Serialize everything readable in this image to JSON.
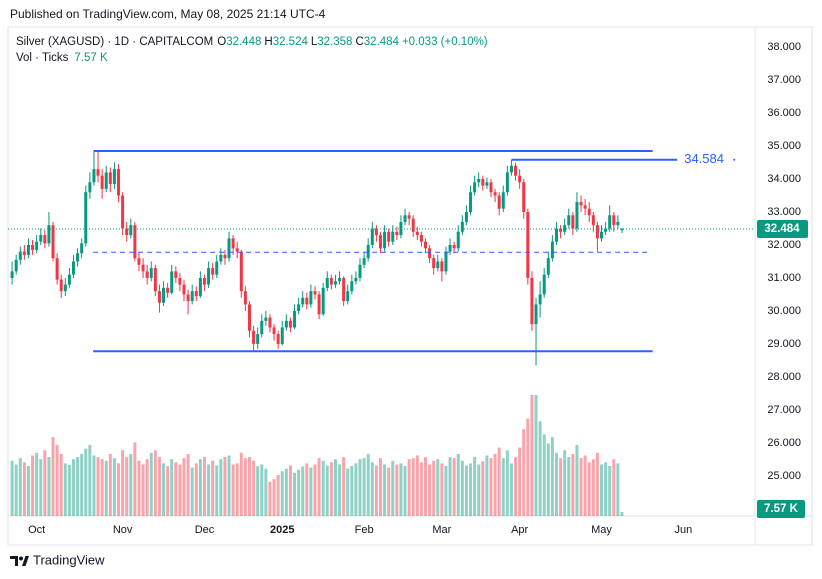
{
  "chart_data": {
    "type": "candlestick",
    "published": "Published on TradingView.com, May 08, 2025 21:14 UTC-4",
    "title": "Silver (XAGUSD) · 1D · CAPITALCOM",
    "ohlc_letters": [
      "O",
      "H",
      "L",
      "C"
    ],
    "change": "+0.033 (+0.10%)",
    "volume_title": "Vol · Ticks",
    "brand": "TradingView",
    "up_color": "#089981",
    "down_color": "#f23645",
    "line_color": "#2962ff",
    "xlim": [
      -1,
      181.5
    ],
    "xticks": [
      {
        "value": 6,
        "label": "Oct"
      },
      {
        "value": 27,
        "label": "Nov"
      },
      {
        "value": 47,
        "label": "Dec"
      },
      {
        "value": 66,
        "label": "2025"
      },
      {
        "value": 86,
        "label": "Feb"
      },
      {
        "value": 105,
        "label": "Mar"
      },
      {
        "value": 124,
        "label": "Apr"
      },
      {
        "value": 144,
        "label": "May"
      },
      {
        "value": 164,
        "label": "Jun"
      }
    ],
    "ylim": [
      23.785,
      38.577
    ],
    "yticks": [
      {
        "value": 25,
        "label": "25.000"
      },
      {
        "value": 26,
        "label": "26.000"
      },
      {
        "value": 27,
        "label": "27.000"
      },
      {
        "value": 28,
        "label": "28.000"
      },
      {
        "value": 29,
        "label": "29.000"
      },
      {
        "value": 30,
        "label": "30.000"
      },
      {
        "value": 31,
        "label": "31.000"
      },
      {
        "value": 32,
        "label": "32.000"
      },
      {
        "value": 33,
        "label": "33.000"
      },
      {
        "value": 34,
        "label": "34.000"
      },
      {
        "value": 35,
        "label": "35.000"
      },
      {
        "value": 36,
        "label": "36.000"
      },
      {
        "value": 37,
        "label": "37.000"
      },
      {
        "value": 38,
        "label": "38.000"
      }
    ],
    "lines": [
      {
        "price": 34.85,
        "from": 20,
        "to": 156.5,
        "style": "solid"
      },
      {
        "price": 34.584,
        "from": 122,
        "to": 162.5,
        "style": "solid"
      },
      {
        "price": 31.78,
        "from": 19.8,
        "to": 155.8,
        "style": "dashed"
      },
      {
        "price": 28.78,
        "from": 19.8,
        "to": 156.5,
        "style": "solid"
      }
    ],
    "series": [
      {
        "values": [
          [
            31.0,
            31.5,
            30.8,
            31.2
          ],
          [
            31.2,
            31.7,
            31.1,
            31.55
          ],
          [
            31.55,
            31.95,
            31.4,
            31.8
          ],
          [
            31.8,
            32.0,
            31.55,
            31.7
          ],
          [
            31.7,
            32.2,
            31.6,
            32.0
          ],
          [
            32.0,
            32.15,
            31.7,
            31.85
          ],
          [
            31.85,
            32.3,
            31.75,
            32.1
          ],
          [
            32.1,
            32.5,
            32.0,
            32.3
          ],
          [
            32.3,
            32.45,
            31.9,
            32.05
          ],
          [
            32.05,
            33.0,
            31.95,
            32.6
          ],
          [
            32.6,
            32.7,
            31.5,
            31.6
          ],
          [
            31.6,
            31.75,
            30.8,
            30.95
          ],
          [
            30.95,
            31.1,
            30.4,
            30.6
          ],
          [
            30.6,
            31.0,
            30.45,
            30.8
          ],
          [
            30.8,
            31.3,
            30.7,
            31.1
          ],
          [
            31.1,
            31.7,
            31.0,
            31.5
          ],
          [
            31.5,
            31.9,
            31.35,
            31.75
          ],
          [
            31.75,
            32.2,
            31.6,
            32.05
          ],
          [
            32.05,
            33.8,
            31.95,
            33.6
          ],
          [
            33.6,
            34.2,
            33.4,
            33.9
          ],
          [
            33.9,
            34.87,
            33.8,
            34.3
          ],
          [
            34.3,
            34.85,
            33.9,
            34.1
          ],
          [
            34.1,
            34.3,
            33.4,
            33.7
          ],
          [
            33.7,
            34.4,
            33.6,
            34.2
          ],
          [
            34.2,
            34.35,
            33.6,
            33.85
          ],
          [
            33.85,
            34.5,
            33.7,
            34.3
          ],
          [
            34.3,
            34.45,
            33.3,
            33.5
          ],
          [
            33.5,
            33.6,
            32.3,
            32.5
          ],
          [
            32.5,
            32.7,
            32.1,
            32.3
          ],
          [
            32.3,
            32.8,
            32.2,
            32.6
          ],
          [
            32.6,
            32.7,
            31.5,
            31.6
          ],
          [
            31.6,
            31.8,
            31.2,
            31.4
          ],
          [
            31.4,
            31.6,
            31.0,
            31.2
          ],
          [
            31.2,
            31.4,
            30.8,
            31.0
          ],
          [
            31.0,
            31.5,
            30.9,
            31.3
          ],
          [
            31.3,
            31.4,
            30.45,
            30.6
          ],
          [
            30.6,
            30.8,
            29.95,
            30.25
          ],
          [
            30.25,
            30.9,
            30.15,
            30.7
          ],
          [
            30.7,
            30.85,
            30.4,
            30.55
          ],
          [
            30.55,
            31.4,
            30.5,
            31.2
          ],
          [
            31.2,
            31.35,
            30.85,
            31.0
          ],
          [
            31.0,
            31.15,
            30.6,
            30.8
          ],
          [
            30.8,
            30.95,
            30.3,
            30.5
          ],
          [
            30.5,
            30.65,
            29.9,
            30.3
          ],
          [
            30.3,
            30.8,
            30.2,
            30.6
          ],
          [
            30.6,
            30.75,
            30.3,
            30.45
          ],
          [
            30.45,
            31.2,
            30.4,
            31.0
          ],
          [
            31.0,
            31.1,
            30.6,
            30.8
          ],
          [
            30.8,
            31.5,
            30.7,
            31.3
          ],
          [
            31.3,
            31.45,
            30.95,
            31.1
          ],
          [
            31.1,
            31.7,
            31.0,
            31.5
          ],
          [
            31.5,
            31.9,
            31.4,
            31.7
          ],
          [
            31.7,
            31.85,
            31.4,
            31.6
          ],
          [
            31.6,
            32.4,
            31.5,
            32.2
          ],
          [
            32.2,
            32.3,
            31.7,
            31.9
          ],
          [
            31.9,
            32.1,
            31.6,
            31.8
          ],
          [
            31.8,
            31.85,
            30.4,
            30.6
          ],
          [
            30.6,
            30.75,
            30.0,
            30.2
          ],
          [
            30.2,
            30.3,
            29.2,
            29.4
          ],
          [
            29.4,
            29.55,
            28.8,
            29.0
          ],
          [
            29.0,
            29.5,
            28.85,
            29.3
          ],
          [
            29.3,
            29.9,
            29.2,
            29.7
          ],
          [
            29.7,
            30.0,
            29.55,
            29.8
          ],
          [
            29.8,
            29.9,
            29.35,
            29.5
          ],
          [
            29.5,
            29.6,
            29.1,
            29.3
          ],
          [
            29.3,
            29.4,
            28.85,
            29.0
          ],
          [
            29.0,
            29.7,
            28.95,
            29.5
          ],
          [
            29.5,
            29.9,
            29.4,
            29.7
          ],
          [
            29.7,
            29.8,
            29.35,
            29.5
          ],
          [
            29.5,
            30.2,
            29.45,
            30.0
          ],
          [
            30.0,
            30.4,
            29.9,
            30.2
          ],
          [
            30.2,
            30.6,
            30.1,
            30.4
          ],
          [
            30.4,
            30.55,
            30.05,
            30.2
          ],
          [
            30.2,
            30.8,
            30.1,
            30.6
          ],
          [
            30.6,
            30.75,
            30.35,
            30.5
          ],
          [
            30.5,
            30.6,
            29.75,
            29.9
          ],
          [
            29.9,
            30.85,
            29.85,
            30.7
          ],
          [
            30.7,
            31.2,
            30.6,
            31.0
          ],
          [
            31.0,
            31.1,
            30.65,
            30.8
          ],
          [
            30.8,
            31.1,
            30.7,
            30.9
          ],
          [
            30.9,
            31.2,
            30.8,
            31.0
          ],
          [
            31.0,
            31.05,
            30.15,
            30.3
          ],
          [
            30.3,
            30.8,
            30.2,
            30.6
          ],
          [
            30.6,
            31.1,
            30.5,
            30.9
          ],
          [
            30.9,
            31.2,
            30.8,
            31.0
          ],
          [
            31.0,
            31.6,
            30.9,
            31.4
          ],
          [
            31.4,
            31.8,
            31.3,
            31.6
          ],
          [
            31.6,
            32.2,
            31.5,
            32.0
          ],
          [
            32.0,
            32.7,
            31.9,
            32.5
          ],
          [
            32.5,
            32.6,
            32.1,
            32.3
          ],
          [
            32.3,
            32.4,
            31.75,
            31.9
          ],
          [
            31.9,
            32.6,
            31.8,
            32.4
          ],
          [
            32.4,
            32.5,
            31.95,
            32.1
          ],
          [
            32.1,
            32.6,
            32.0,
            32.4
          ],
          [
            32.4,
            32.55,
            32.15,
            32.3
          ],
          [
            32.3,
            32.9,
            32.2,
            32.7
          ],
          [
            32.7,
            33.1,
            32.6,
            32.9
          ],
          [
            32.9,
            33.0,
            32.6,
            32.8
          ],
          [
            32.8,
            32.9,
            32.25,
            32.4
          ],
          [
            32.4,
            32.55,
            32.15,
            32.3
          ],
          [
            32.3,
            32.4,
            31.95,
            32.1
          ],
          [
            32.1,
            32.2,
            31.75,
            31.9
          ],
          [
            31.9,
            32.0,
            31.45,
            31.6
          ],
          [
            31.6,
            31.7,
            31.1,
            31.3
          ],
          [
            31.3,
            31.7,
            31.2,
            31.5
          ],
          [
            31.5,
            31.6,
            30.9,
            31.2
          ],
          [
            31.2,
            31.95,
            31.1,
            31.8
          ],
          [
            31.8,
            32.2,
            31.7,
            32.0
          ],
          [
            32.0,
            32.1,
            31.75,
            31.9
          ],
          [
            31.9,
            32.6,
            31.8,
            32.4
          ],
          [
            32.4,
            32.9,
            32.3,
            32.7
          ],
          [
            32.7,
            33.2,
            32.6,
            33.0
          ],
          [
            33.0,
            33.8,
            32.9,
            33.6
          ],
          [
            33.6,
            34.1,
            33.5,
            33.9
          ],
          [
            33.9,
            34.2,
            33.75,
            34.0
          ],
          [
            34.0,
            34.1,
            33.65,
            33.8
          ],
          [
            33.8,
            34.05,
            33.7,
            33.9
          ],
          [
            33.9,
            34.0,
            33.45,
            33.6
          ],
          [
            33.6,
            33.7,
            33.3,
            33.5
          ],
          [
            33.5,
            33.6,
            32.9,
            33.1
          ],
          [
            33.1,
            33.8,
            33.0,
            33.6
          ],
          [
            33.6,
            34.4,
            33.5,
            34.2
          ],
          [
            34.2,
            34.58,
            34.1,
            34.4
          ],
          [
            34.4,
            34.5,
            33.95,
            34.1
          ],
          [
            34.1,
            34.3,
            33.7,
            33.9
          ],
          [
            33.9,
            34.0,
            32.8,
            33.0
          ],
          [
            33.0,
            33.1,
            30.8,
            31.0
          ],
          [
            31.0,
            31.2,
            29.4,
            29.6
          ],
          [
            29.6,
            30.4,
            28.35,
            30.2
          ],
          [
            30.2,
            30.9,
            29.8,
            30.5
          ],
          [
            30.5,
            31.3,
            30.4,
            31.1
          ],
          [
            31.1,
            31.8,
            31.0,
            31.6
          ],
          [
            31.6,
            32.3,
            31.5,
            32.1
          ],
          [
            32.1,
            32.7,
            32.0,
            32.5
          ],
          [
            32.5,
            32.6,
            32.2,
            32.4
          ],
          [
            32.4,
            32.8,
            32.3,
            32.6
          ],
          [
            32.6,
            33.1,
            32.5,
            32.9
          ],
          [
            32.9,
            33.0,
            32.3,
            32.5
          ],
          [
            32.5,
            33.6,
            32.4,
            33.3
          ],
          [
            33.3,
            33.5,
            33.0,
            33.2
          ],
          [
            33.2,
            33.4,
            32.9,
            33.1
          ],
          [
            33.1,
            33.3,
            32.7,
            32.9
          ],
          [
            32.9,
            33.0,
            32.4,
            32.6
          ],
          [
            32.6,
            32.7,
            31.8,
            32.2
          ],
          [
            32.2,
            32.6,
            32.1,
            32.4
          ],
          [
            32.4,
            32.7,
            32.3,
            32.5
          ],
          [
            32.5,
            33.2,
            32.4,
            32.9
          ],
          [
            32.9,
            33.0,
            32.4,
            32.6
          ],
          [
            32.6,
            32.9,
            32.5,
            32.7
          ],
          [
            32.448,
            32.524,
            32.358,
            32.484
          ]
        ]
      }
    ],
    "volumes": [
      105,
      98,
      110,
      102,
      95,
      115,
      120,
      108,
      125,
      112,
      150,
      135,
      118,
      100,
      97,
      108,
      112,
      118,
      128,
      135,
      115,
      112,
      108,
      105,
      118,
      110,
      100,
      125,
      112,
      118,
      140,
      105,
      98,
      108,
      120,
      125,
      112,
      100,
      95,
      108,
      102,
      98,
      110,
      118,
      92,
      100,
      108,
      112,
      98,
      105,
      96,
      108,
      112,
      115,
      98,
      100,
      120,
      110,
      112,
      105,
      95,
      98,
      90,
      65,
      70,
      78,
      85,
      90,
      96,
      82,
      88,
      94,
      100,
      92,
      98,
      110,
      105,
      96,
      102,
      108,
      98,
      112,
      90,
      95,
      100,
      108,
      110,
      118,
      102,
      96,
      110,
      98,
      92,
      105,
      98,
      100,
      95,
      108,
      110,
      115,
      102,
      112,
      98,
      105,
      108,
      100,
      95,
      112,
      110,
      118,
      105,
      96,
      100,
      112,
      98,
      104,
      115,
      110,
      118,
      130,
      110,
      125,
      100,
      112,
      130,
      165,
      185,
      230,
      230,
      180,
      155,
      138,
      150,
      120,
      110,
      125,
      112,
      118,
      135,
      110,
      115,
      102,
      108,
      120,
      98,
      102,
      95,
      108,
      100,
      7.57
    ],
    "volume_value_labels": {
      "149": "7.57 K"
    }
  }
}
